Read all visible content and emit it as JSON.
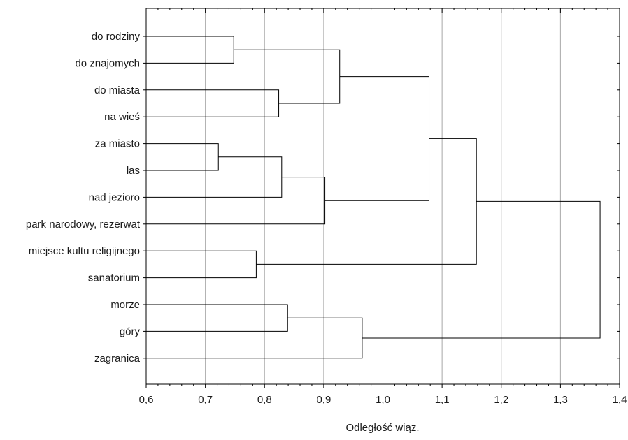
{
  "chart_data": {
    "type": "dendrogram",
    "orientation": "horizontal",
    "title": "",
    "xlabel": "Odległość wiąz.",
    "ylabel": "",
    "xlim": [
      0.6,
      1.4
    ],
    "x_ticks": [
      0.6,
      0.7,
      0.8,
      0.9,
      1.0,
      1.1,
      1.2,
      1.3,
      1.4
    ],
    "x_tick_labels": [
      "0,6",
      "0,7",
      "0,8",
      "0,9",
      "1,0",
      "1,1",
      "1,2",
      "1,3",
      "1,4"
    ],
    "grid": "vertical",
    "leaves": [
      "do rodziny",
      "do znajomych",
      "do miasta",
      "na wieś",
      "za miasto",
      "las",
      "nad jezioro",
      "park narodowy, rezerwat",
      "miejsce kultu religijnego",
      "sanatorium",
      "morze",
      "góry",
      "zagranica"
    ],
    "merges": [
      {
        "a": "do rodziny",
        "b": "do znajomych",
        "height": 0.748
      },
      {
        "a": "do miasta",
        "b": "na wieś",
        "height": 0.824
      },
      {
        "a": "za miasto",
        "b": "las",
        "height": 0.722
      },
      {
        "a": "za miasto+las",
        "b": "nad jezioro",
        "height": 0.829
      },
      {
        "a": "za miasto+las+nad jezioro",
        "b": "park narodowy, rezerwat",
        "height": 0.902
      },
      {
        "a": "do rodziny+do znajomych",
        "b": "do miasta+na wieś",
        "height": 0.927
      },
      {
        "a": "miejsce kultu religijnego",
        "b": "sanatorium",
        "height": 0.786
      },
      {
        "a": "morze",
        "b": "góry",
        "height": 0.839
      },
      {
        "a": "morze+góry",
        "b": "zagranica",
        "height": 0.965
      },
      {
        "a": "do rodziny..na wieś",
        "b": "za miasto..park narodowy, rezerwat",
        "height": 1.078
      },
      {
        "a": "do rodziny..park narodowy, rezerwat",
        "b": "miejsce kultu religijnego+sanatorium",
        "height": 1.158
      },
      {
        "a": "do rodziny..sanatorium",
        "b": "morze+góry+zagranica",
        "height": 1.367
      }
    ]
  }
}
